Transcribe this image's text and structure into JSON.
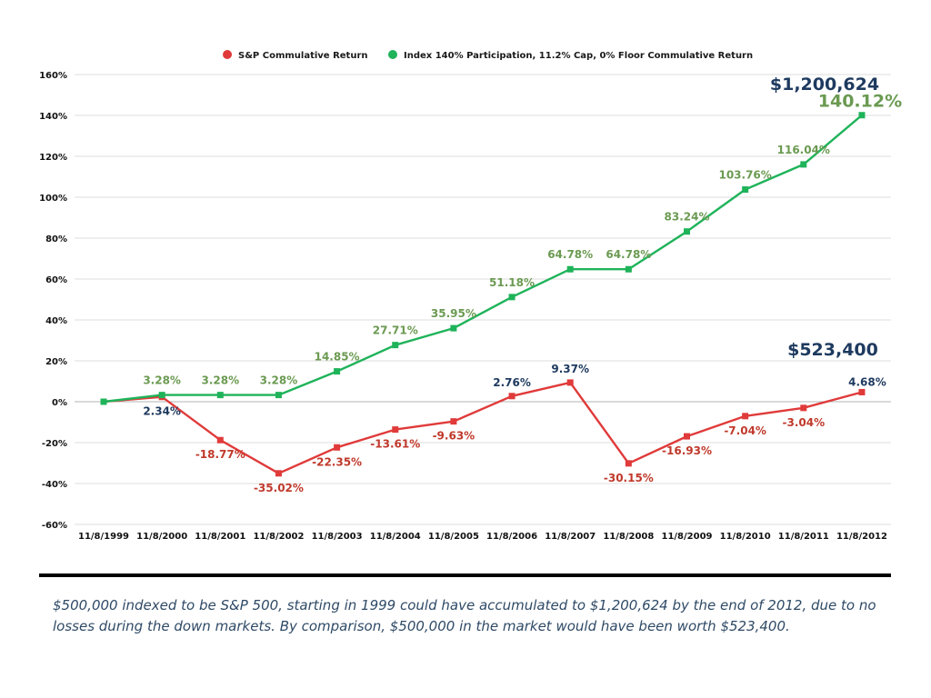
{
  "chart_data": {
    "type": "line",
    "categories": [
      "11/8/1999",
      "11/8/2000",
      "11/8/2001",
      "11/8/2002",
      "11/8/2003",
      "11/8/2004",
      "11/8/2005",
      "11/8/2006",
      "11/8/2007",
      "11/8/2008",
      "11/8/2009",
      "11/8/2010",
      "11/8/2011",
      "11/8/2012"
    ],
    "series": [
      {
        "name": "S&P Commulative Return",
        "color": "#e03a3a",
        "values": [
          0,
          2.34,
          -18.77,
          -35.02,
          -22.35,
          -13.61,
          -9.63,
          2.76,
          9.37,
          -30.15,
          -16.93,
          -7.04,
          -3.04,
          4.68
        ],
        "data_labels": [
          "",
          "2.34%",
          "-18.77%",
          "-35.02%",
          "-22.35%",
          "-13.61%",
          "-9.63%",
          "2.76%",
          "9.37%",
          "-30.15%",
          "-16.93%",
          "-7.04%",
          "-3.04%",
          "4.68%"
        ]
      },
      {
        "name": "Index 140% Participation, 11.2% Cap, 0% Floor Commulative Return",
        "color": "#1fb35a",
        "values": [
          0,
          3.28,
          3.28,
          3.28,
          14.85,
          27.71,
          35.95,
          51.18,
          64.78,
          64.78,
          83.24,
          103.76,
          116.04,
          140.12
        ],
        "data_labels": [
          "",
          "3.28%",
          "3.28%",
          "3.28%",
          "14.85%",
          "27.71%",
          "35.95%",
          "51.18%",
          "64.78%",
          "64.78%",
          "83.24%",
          "103.76%",
          "116.04%",
          "140.12%"
        ]
      }
    ],
    "ylim": [
      -60,
      160
    ],
    "yticks": [
      160,
      140,
      120,
      100,
      80,
      60,
      40,
      20,
      0,
      -20,
      -40,
      -60
    ],
    "ytick_labels": [
      "160%",
      "140%",
      "120%",
      "100%",
      "80%",
      "60%",
      "40%",
      "20%",
      "0%",
      "-20%",
      "-40%",
      "-60%"
    ],
    "grid": true,
    "legend_position": "top-center",
    "annotations": {
      "index_final_value": "$1,200,624",
      "sp_final_value": "$523,400"
    },
    "label_colors": {
      "sp_positive": "#1e3a5f",
      "sp_negative": "#c0392b",
      "index": "#6b9a52",
      "final_value": "#1e3a5f"
    }
  },
  "caption": "$500,000 indexed to be S&P 500, starting in 1999 could have accumulated to $1,200,624 by the end of 2012, due to no losses during the down markets. By comparison, $500,000 in the market would have been worth $523,400."
}
